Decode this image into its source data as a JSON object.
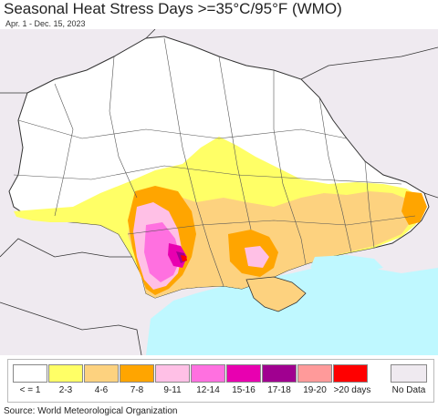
{
  "header": {
    "title": "Seasonal Heat Stress Days >=35°C/95°F (WMO)",
    "subtitle": "Apr. 1 - Dec. 15, 2023"
  },
  "legend": {
    "items": [
      {
        "label": "< = 1",
        "color": "#ffffff"
      },
      {
        "label": "2-3",
        "color": "#ffff66"
      },
      {
        "label": "4-6",
        "color": "#fdd27f"
      },
      {
        "label": "7-8",
        "color": "#ffa500"
      },
      {
        "label": "9-11",
        "color": "#ffc0e6"
      },
      {
        "label": "12-14",
        "color": "#ff70e0"
      },
      {
        "label": "15-16",
        "color": "#e800b0"
      },
      {
        "label": "17-18",
        "color": "#a00090"
      },
      {
        "label": "19-20",
        "color": "#ff9a9a"
      },
      {
        "label": ">20 days",
        "color": "#ff0000"
      }
    ],
    "nodata": {
      "label": "No Data",
      "color": "#efeaf0"
    }
  },
  "colors": {
    "sea": "#bff8ff",
    "land_outside": "#efeaf0",
    "border": "#333333"
  },
  "footer": {
    "source": "Source: World Meteorological Organization"
  }
}
